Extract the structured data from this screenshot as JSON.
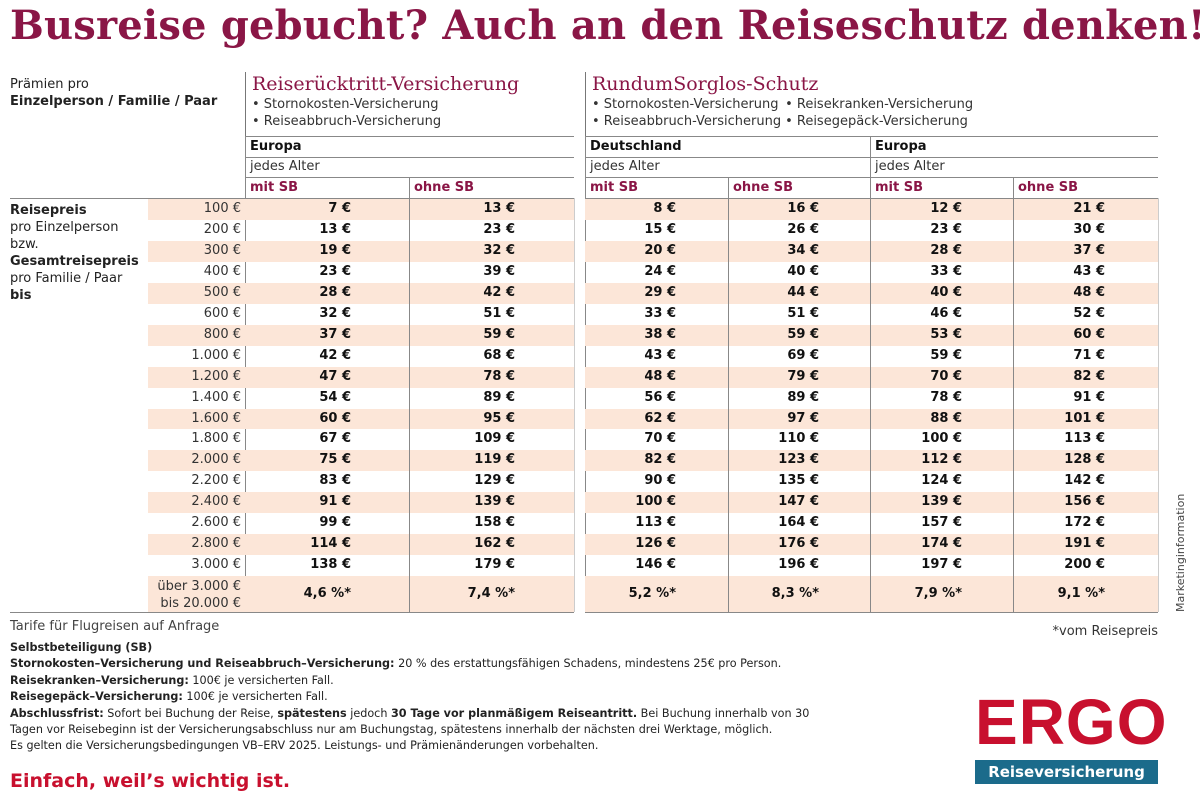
{
  "title": "Busreise gebucht? Auch an den Reiseschutz denken!",
  "praemien": {
    "line1": "Prämien pro",
    "line2": "Einzelperson / Familie / Paar"
  },
  "sections": {
    "reiseruecktritt": {
      "title": "Reiserücktritt-Versicherung",
      "bullets": [
        "• Stornokosten-Versicherung",
        "• Reiseabbruch-Versicherung"
      ],
      "region": "Europa",
      "age": "jedes Alter"
    },
    "rundum": {
      "title": "RundumSorglos-Schutz",
      "bullets_col1": [
        "• Stornokosten-Versicherung",
        "• Reiseabbruch-Versicherung"
      ],
      "bullets_col2": [
        "• Reisekranken-Versicherung",
        "• Reisegepäck-Versicherung"
      ],
      "region_de": "Deutschland",
      "region_eu": "Europa",
      "age_de": "jedes Alter",
      "age_eu": "jedes Alter"
    }
  },
  "col_labels": {
    "mit": "mit SB",
    "ohne": "ohne SB"
  },
  "row_label": {
    "l1": "Reisepreis",
    "l2": "pro Einzelperson",
    "l3": "bzw.",
    "l4": "Gesamtreisepreis",
    "l5": "pro Familie / Paar",
    "l6": "bis"
  },
  "rows": [
    {
      "price": "100 €",
      "v": [
        "7 €",
        "13 €",
        "8 €",
        "16 €",
        "12 €",
        "21 €"
      ]
    },
    {
      "price": "200 €",
      "v": [
        "13 €",
        "23 €",
        "15 €",
        "26 €",
        "23 €",
        "30 €"
      ]
    },
    {
      "price": "300 €",
      "v": [
        "19 €",
        "32 €",
        "20 €",
        "34 €",
        "28 €",
        "37 €"
      ]
    },
    {
      "price": "400 €",
      "v": [
        "23 €",
        "39 €",
        "24 €",
        "40 €",
        "33 €",
        "43 €"
      ]
    },
    {
      "price": "500 €",
      "v": [
        "28 €",
        "42 €",
        "29 €",
        "44 €",
        "40 €",
        "48 €"
      ]
    },
    {
      "price": "600 €",
      "v": [
        "32 €",
        "51 €",
        "33 €",
        "51 €",
        "46 €",
        "52 €"
      ]
    },
    {
      "price": "800 €",
      "v": [
        "37 €",
        "59 €",
        "38 €",
        "59 €",
        "53 €",
        "60 €"
      ]
    },
    {
      "price": "1.000 €",
      "v": [
        "42 €",
        "68 €",
        "43 €",
        "69 €",
        "59 €",
        "71 €"
      ]
    },
    {
      "price": "1.200 €",
      "v": [
        "47 €",
        "78 €",
        "48 €",
        "79 €",
        "70 €",
        "82 €"
      ]
    },
    {
      "price": "1.400 €",
      "v": [
        "54 €",
        "89 €",
        "56 €",
        "89 €",
        "78 €",
        "91 €"
      ]
    },
    {
      "price": "1.600 €",
      "v": [
        "60 €",
        "95 €",
        "62 €",
        "97 €",
        "88 €",
        "101 €"
      ]
    },
    {
      "price": "1.800 €",
      "v": [
        "67 €",
        "109 €",
        "70 €",
        "110 €",
        "100 €",
        "113 €"
      ]
    },
    {
      "price": "2.000 €",
      "v": [
        "75 €",
        "119 €",
        "82 €",
        "123 €",
        "112 €",
        "128 €"
      ]
    },
    {
      "price": "2.200 €",
      "v": [
        "83 €",
        "129 €",
        "90 €",
        "135 €",
        "124 €",
        "142 €"
      ]
    },
    {
      "price": "2.400 €",
      "v": [
        "91 €",
        "139 €",
        "100 €",
        "147 €",
        "139 €",
        "156 €"
      ]
    },
    {
      "price": "2.600 €",
      "v": [
        "99 €",
        "158 €",
        "113 €",
        "164 €",
        "157 €",
        "172 €"
      ]
    },
    {
      "price": "2.800 €",
      "v": [
        "114 €",
        "162 €",
        "126 €",
        "176 €",
        "174 €",
        "191 €"
      ]
    },
    {
      "price": "3.000 €",
      "v": [
        "138 €",
        "179 €",
        "146 €",
        "196 €",
        "197 €",
        "200 €"
      ]
    }
  ],
  "last_row": {
    "price_line1": "über 3.000 €",
    "price_line2": "bis 20.000 €",
    "v": [
      "4,6 %*",
      "7,4 %*",
      "5,2 %*",
      "8,3 %*",
      "7,9 %*",
      "9,1 %*"
    ]
  },
  "side_note": "Marketinginformation",
  "footnote_right": "*vom Reisepreis",
  "tarife": "Tarife für Flugreisen auf Anfrage",
  "details": {
    "sb_title": "Selbstbeteiligung (SB)",
    "storno_label": "Stornokosten–Versicherung und Reiseabbruch–Versicherung:",
    "storno_text": " 20 % des erstattungsfähigen Schadens, mindestens 25€ pro Person.",
    "kranken_label": "Reisekranken–Versicherung:",
    "kranken_text": " 100€ je versicherten Fall.",
    "gepaeck_label": "Reisegepäck–Versicherung:",
    "gepaeck_text": " 100€ je versicherten Fall.",
    "frist_label": "Abschlussfrist:",
    "frist_text1": " Sofort bei Buchung der Reise, ",
    "frist_bold1": "spätestens",
    "frist_text2": " jedoch ",
    "frist_bold2": "30 Tage vor planmäßigem Reiseantritt.",
    "frist_text3": " Bei Buchung innerhalb von 30 Tagen vor Reisebeginn ist der Versicherungsabschluss nur am Buchungstag, spätestens innerhalb der nächsten drei Werktage, möglich.",
    "bedingungen": "Es gelten die Versicherungsbedingungen VB–ERV 2025. Leistungs- und Prämienänderungen vorbehalten."
  },
  "slogan": "Einfach, weil’s wichtig ist.",
  "logo": {
    "word": "ERGO",
    "sub": "Reiseversicherung"
  },
  "colors": {
    "brand_red": "#c8102e",
    "heading_wine": "#8a1646",
    "row_fill": "#fce6d8",
    "logo_blue": "#1b6b8b"
  }
}
